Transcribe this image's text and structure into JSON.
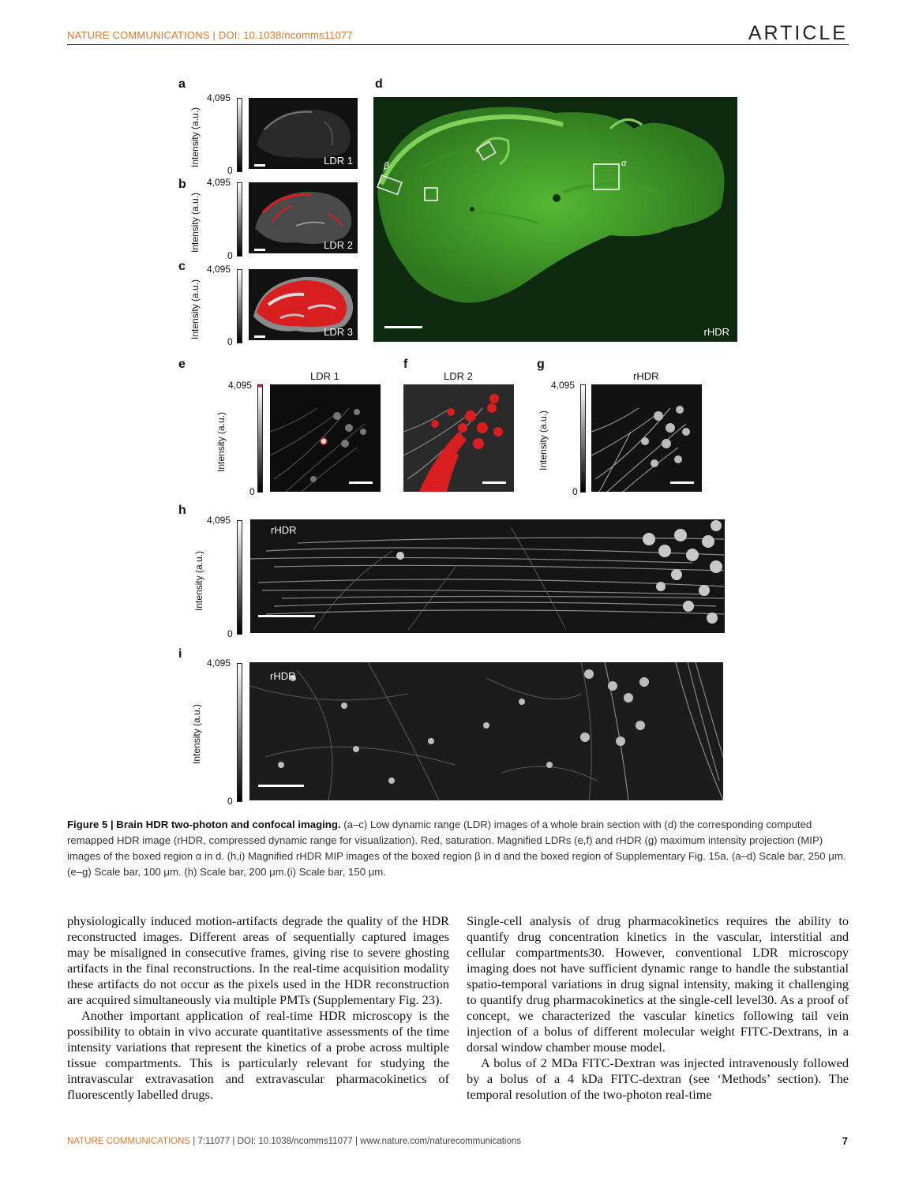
{
  "header": {
    "left": "NATURE COMMUNICATIONS | DOI: 10.1038/ncomms11077",
    "right": "ARTICLE"
  },
  "figure": {
    "panel_letters": {
      "a": "a",
      "b": "b",
      "c": "c",
      "d": "d",
      "e": "e",
      "f": "f",
      "g": "g",
      "h": "h",
      "i": "i"
    },
    "colorbar": {
      "max": "4,095",
      "min": "0",
      "ylabel": "Intensity (a.u.)"
    },
    "ldr1": "LDR 1",
    "ldr2": "LDR 2",
    "ldr3": "LDR 3",
    "rhdr": "rHDR",
    "region_alpha": "α",
    "region_beta": "β",
    "colors": {
      "saturation_red": "#d81e1e",
      "fluorescence_green": "#4caf2c",
      "accent_orange": "#e0762a"
    }
  },
  "caption": {
    "label": "Figure 5 | Brain HDR two-photon and confocal imaging.",
    "text": "(a–c) Low dynamic range (LDR) images of a whole brain section with (d) the corresponding computed remapped HDR image (rHDR, compressed dynamic range for visualization). Red, saturation. Magnified LDRs (e,f) and rHDR (g) maximum intensity projection (MIP) images of the boxed region α in d. (h,i) Magnified rHDR MIP images of the boxed region β in d and the boxed region of Supplementary Fig. 15a. (a–d) Scale bar, 250 μm. (e–g) Scale bar, 100 μm. (h) Scale bar, 200 μm.(i) Scale bar, 150 μm."
  },
  "body": {
    "left_p1": "physiologically induced motion-artifacts degrade the quality of the HDR reconstructed images. Different areas of sequentially captured images may be misaligned in consecutive frames, giving rise to severe ghosting artifacts in the final reconstructions. In the real-time acquisition modality these artifacts do not occur as the pixels used in the HDR reconstruction are acquired simultaneously via multiple PMTs (Supplementary Fig. 23).",
    "left_p2": "Another important application of real-time HDR microscopy is the possibility to obtain in vivo accurate quantitative assessments of the time intensity variations that represent the kinetics of a probe across multiple tissue compartments. This is particularly relevant for studying the intravascular extravasation and extravascular pharmacokinetics of fluorescently labelled drugs.",
    "right_p1": "Single-cell analysis of drug pharmacokinetics requires the ability to quantify drug concentration kinetics in the vascular, interstitial and cellular compartments30. However, conventional LDR microscopy imaging does not have sufficient dynamic range to handle the substantial spatio-temporal variations in drug signal intensity, making it challenging to quantify drug pharmacokinetics at the single-cell level30. As a proof of concept, we characterized the vascular kinetics following tail vein injection of a bolus of different molecular weight FITC-Dextrans, in a dorsal window chamber mouse model.",
    "right_p2": "A bolus of 2 MDa FITC-Dextran was injected intravenously followed by a bolus of a 4 kDa FITC-dextran (see ‘Methods’ section). The temporal resolution of the two-photon real-time"
  },
  "footer": {
    "left": "NATURE COMMUNICATIONS",
    "rest": " | 7:11077 | DOI: 10.1038/ncomms11077 | www.nature.com/naturecommunications",
    "page": "7"
  }
}
